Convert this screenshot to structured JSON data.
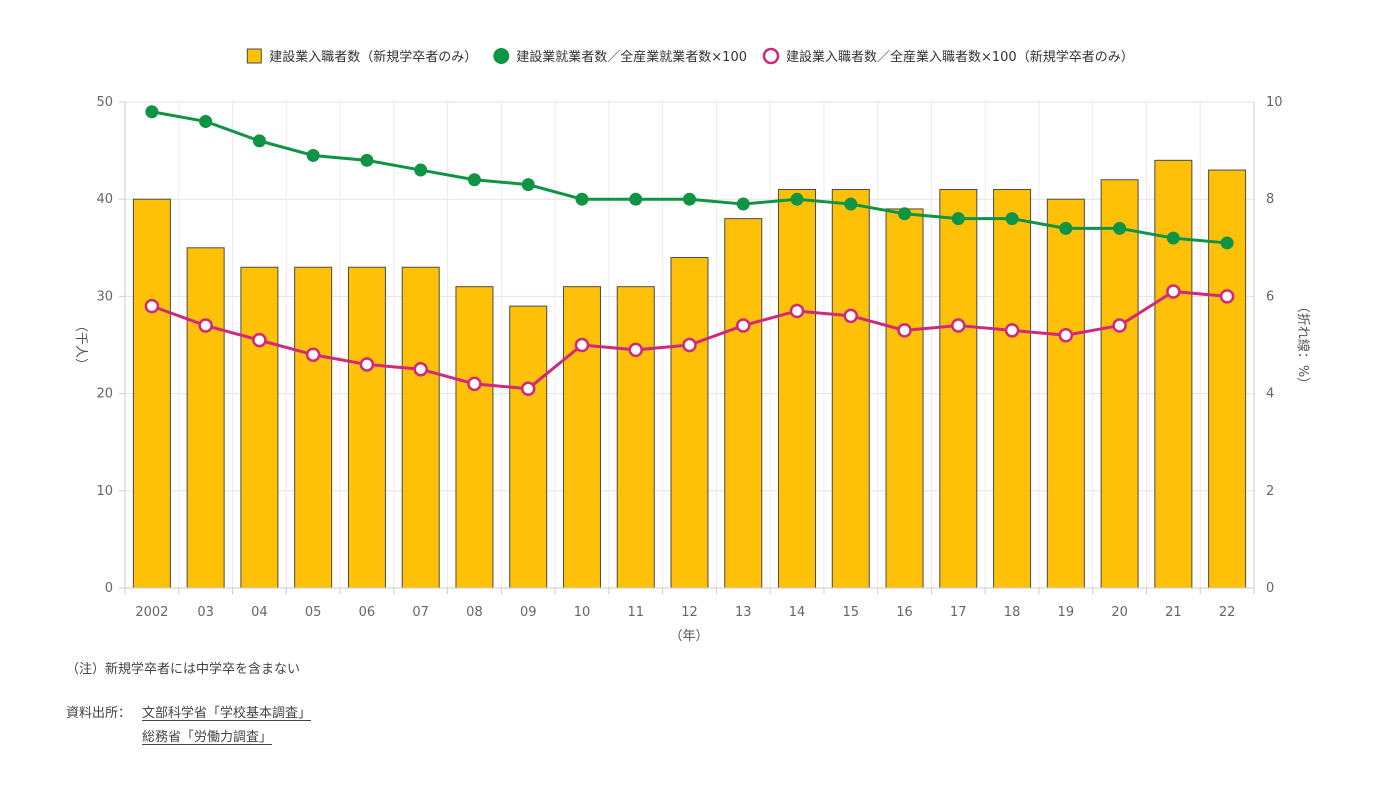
{
  "chart_data": {
    "type": "bar+line",
    "categories": [
      "2002",
      "03",
      "04",
      "05",
      "06",
      "07",
      "08",
      "09",
      "10",
      "11",
      "12",
      "13",
      "14",
      "15",
      "16",
      "17",
      "18",
      "19",
      "20",
      "21",
      "22"
    ],
    "xlabel": "（年）",
    "ylabel_left": "（千人）",
    "ylabel_right": "（折れ線：%）",
    "ylim_left": [
      0,
      50
    ],
    "ylim_right": [
      0,
      10
    ],
    "yticks_left": [
      0,
      10,
      20,
      30,
      40,
      50
    ],
    "yticks_right": [
      0,
      2,
      4,
      6,
      8,
      10
    ],
    "grid": true,
    "legend_position": "top",
    "series": [
      {
        "name": "建設業入職者数（新規学卒者のみ）",
        "kind": "bar",
        "axis": "left",
        "color": "#FFC107",
        "values": [
          40,
          35,
          33,
          33,
          33,
          33,
          31,
          29,
          31,
          31,
          34,
          38,
          41,
          41,
          39,
          41,
          41,
          40,
          42,
          44,
          43
        ]
      },
      {
        "name": "建設業就業者数／全産業就業者数×100",
        "kind": "line",
        "axis": "right",
        "color": "#0E9444",
        "marker": "filled-circle",
        "values": [
          9.8,
          9.6,
          9.2,
          8.9,
          8.8,
          8.6,
          8.4,
          8.3,
          8.0,
          8.0,
          8.0,
          7.9,
          8.0,
          7.9,
          7.7,
          7.6,
          7.6,
          7.4,
          7.4,
          7.2,
          7.1
        ]
      },
      {
        "name": "建設業入職者数／全産業入職者数×100（新規学卒者のみ）",
        "kind": "line",
        "axis": "right",
        "color": "#D0287A",
        "marker": "hollow-circle",
        "values": [
          5.8,
          5.4,
          5.1,
          4.8,
          4.6,
          4.5,
          4.2,
          4.1,
          5.0,
          4.9,
          5.0,
          5.4,
          5.7,
          5.6,
          5.3,
          5.4,
          5.3,
          5.2,
          5.4,
          6.1,
          6.0
        ]
      }
    ]
  },
  "note": "（注）新規学卒者には中学卒を含まない",
  "source": {
    "label": "資料出所：",
    "links": [
      "文部科学省「学校基本調査」",
      "総務省「労働力調査」"
    ]
  }
}
